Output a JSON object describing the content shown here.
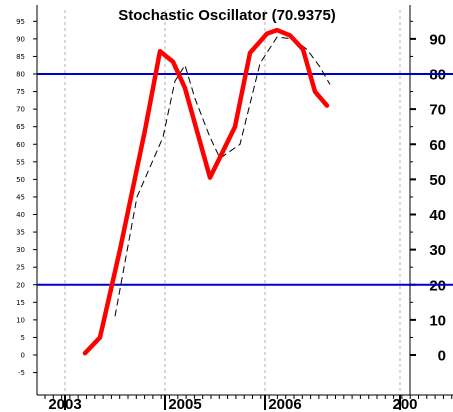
{
  "chart_data": {
    "type": "line",
    "title": "Stochastic Oscillator (70.9375)",
    "x_ticks": [
      "2003",
      "2005",
      "2006",
      "200"
    ],
    "y_ticks_left": [
      -5,
      0,
      5,
      10,
      15,
      20,
      25,
      30,
      35,
      40,
      45,
      50,
      55,
      60,
      65,
      70,
      75,
      80,
      85,
      90,
      95
    ],
    "y_ticks_right": [
      0,
      10,
      20,
      30,
      40,
      50,
      60,
      70,
      80,
      90
    ],
    "ylim": [
      -8,
      100
    ],
    "reference_lines": [
      80,
      20
    ],
    "series": [
      {
        "style": "thick-red",
        "color": "#ff0000",
        "points": [
          {
            "x": 2004.2,
            "y": 0.5
          },
          {
            "x": 2004.35,
            "y": 5
          },
          {
            "x": 2004.55,
            "y": 30
          },
          {
            "x": 2004.8,
            "y": 64
          },
          {
            "x": 2004.95,
            "y": 86.5
          },
          {
            "x": 2005.08,
            "y": 83.5
          },
          {
            "x": 2005.2,
            "y": 76
          },
          {
            "x": 2005.45,
            "y": 50.5
          },
          {
            "x": 2005.7,
            "y": 65
          },
          {
            "x": 2005.85,
            "y": 86
          },
          {
            "x": 2006.02,
            "y": 91.5
          },
          {
            "x": 2006.12,
            "y": 92.5
          },
          {
            "x": 2006.25,
            "y": 91
          },
          {
            "x": 2006.38,
            "y": 87
          },
          {
            "x": 2006.5,
            "y": 75
          },
          {
            "x": 2006.62,
            "y": 71
          }
        ]
      },
      {
        "style": "thin-black-dashed",
        "color": "#000000",
        "points": [
          {
            "x": 2004.5,
            "y": 11
          },
          {
            "x": 2004.72,
            "y": 45
          },
          {
            "x": 2004.98,
            "y": 62
          },
          {
            "x": 2005.1,
            "y": 78
          },
          {
            "x": 2005.2,
            "y": 82.5
          },
          {
            "x": 2005.3,
            "y": 73
          },
          {
            "x": 2005.45,
            "y": 62
          },
          {
            "x": 2005.55,
            "y": 56
          },
          {
            "x": 2005.75,
            "y": 60
          },
          {
            "x": 2005.95,
            "y": 83
          },
          {
            "x": 2006.12,
            "y": 90.5
          },
          {
            "x": 2006.28,
            "y": 90
          },
          {
            "x": 2006.42,
            "y": 87
          },
          {
            "x": 2006.55,
            "y": 82
          },
          {
            "x": 2006.65,
            "y": 77
          }
        ]
      }
    ],
    "colors": {
      "reference_line": "#0000cc",
      "grid": "#b0b0b0",
      "axis": "#000000"
    }
  }
}
